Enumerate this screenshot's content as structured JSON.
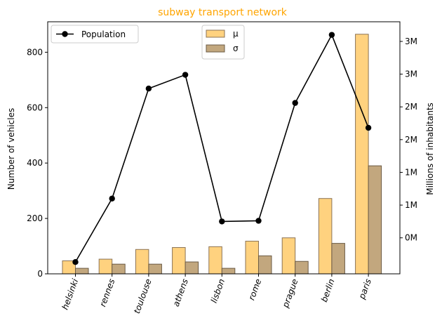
{
  "chart_data": {
    "type": "bar",
    "title": "subway transport network",
    "title_color": "#FFA500",
    "categories": [
      "helsinki",
      "rennes",
      "toulouse",
      "athens",
      "lisbon",
      "rome",
      "prague",
      "berlin",
      "paris"
    ],
    "ylabel": "Number of vehicles",
    "ylim": [
      0,
      910
    ],
    "y_ticks": [
      0,
      200,
      400,
      600,
      800
    ],
    "series": [
      {
        "name": "μ",
        "values": [
          47,
          53,
          88,
          95,
          98,
          118,
          130,
          272,
          865
        ],
        "color": "#FFD27F",
        "edge": "#8B7355"
      },
      {
        "name": "σ",
        "values": [
          20,
          35,
          35,
          43,
          20,
          65,
          45,
          110,
          390
        ],
        "color": "#C2A77E",
        "edge": "#6B5B45"
      }
    ],
    "secondary_axis": {
      "label": "Millions of inhabitants",
      "unit_suffix": "M",
      "ylim": [
        -0.55,
        3.3
      ],
      "ticks": [
        {
          "value": 0,
          "label": "0M"
        },
        {
          "value": 0.5,
          "label": "1M"
        },
        {
          "value": 1.0,
          "label": "1M"
        },
        {
          "value": 1.5,
          "label": "2M"
        },
        {
          "value": 2.0,
          "label": "2M"
        },
        {
          "value": 2.5,
          "label": "3M"
        },
        {
          "value": 3.0,
          "label": "3M"
        }
      ]
    },
    "line_series": {
      "name": "Population",
      "values": [
        -0.37,
        0.6,
        2.28,
        2.49,
        0.25,
        0.26,
        2.06,
        3.1,
        1.68
      ],
      "color": "#000000"
    },
    "legend_bars": "top-center",
    "legend_line": "top-left",
    "grid": false
  }
}
